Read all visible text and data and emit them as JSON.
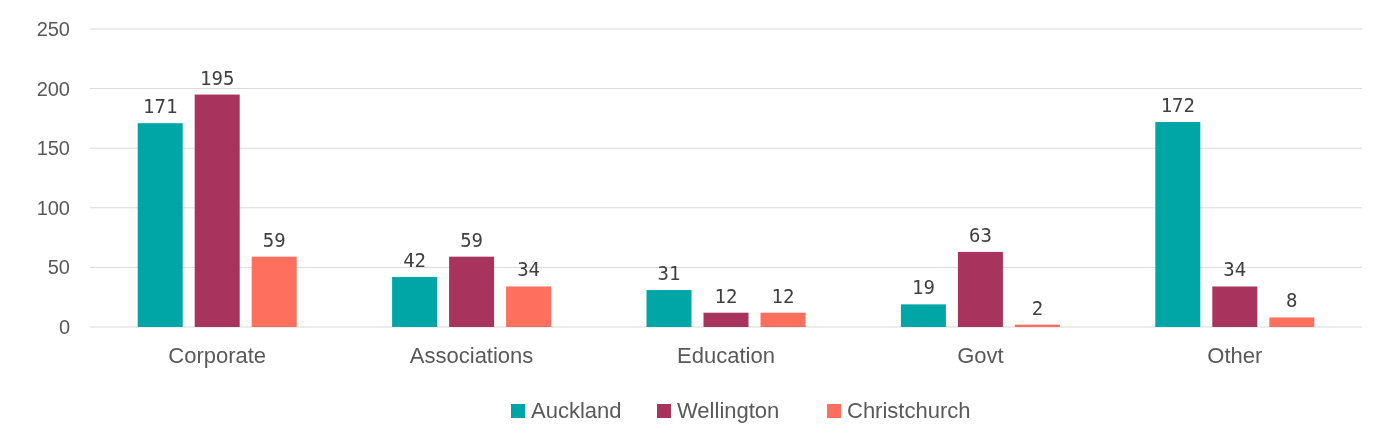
{
  "chart_data": {
    "type": "bar",
    "categories": [
      "Corporate",
      "Associations",
      "Education",
      "Govt",
      "Other"
    ],
    "series": [
      {
        "name": "Auckland",
        "color": "#00a6a6",
        "values": [
          171,
          42,
          31,
          19,
          172
        ]
      },
      {
        "name": "Wellington",
        "color": "#a8345e",
        "values": [
          195,
          59,
          12,
          63,
          34
        ]
      },
      {
        "name": "Christchurch",
        "color": "#fe6f5e",
        "values": [
          59,
          34,
          12,
          2,
          8
        ]
      }
    ],
    "ylim": [
      0,
      250
    ],
    "yticks": [
      0,
      50,
      100,
      150,
      200,
      250
    ],
    "grid": "y",
    "legend": "bottom",
    "data_labels": true
  }
}
